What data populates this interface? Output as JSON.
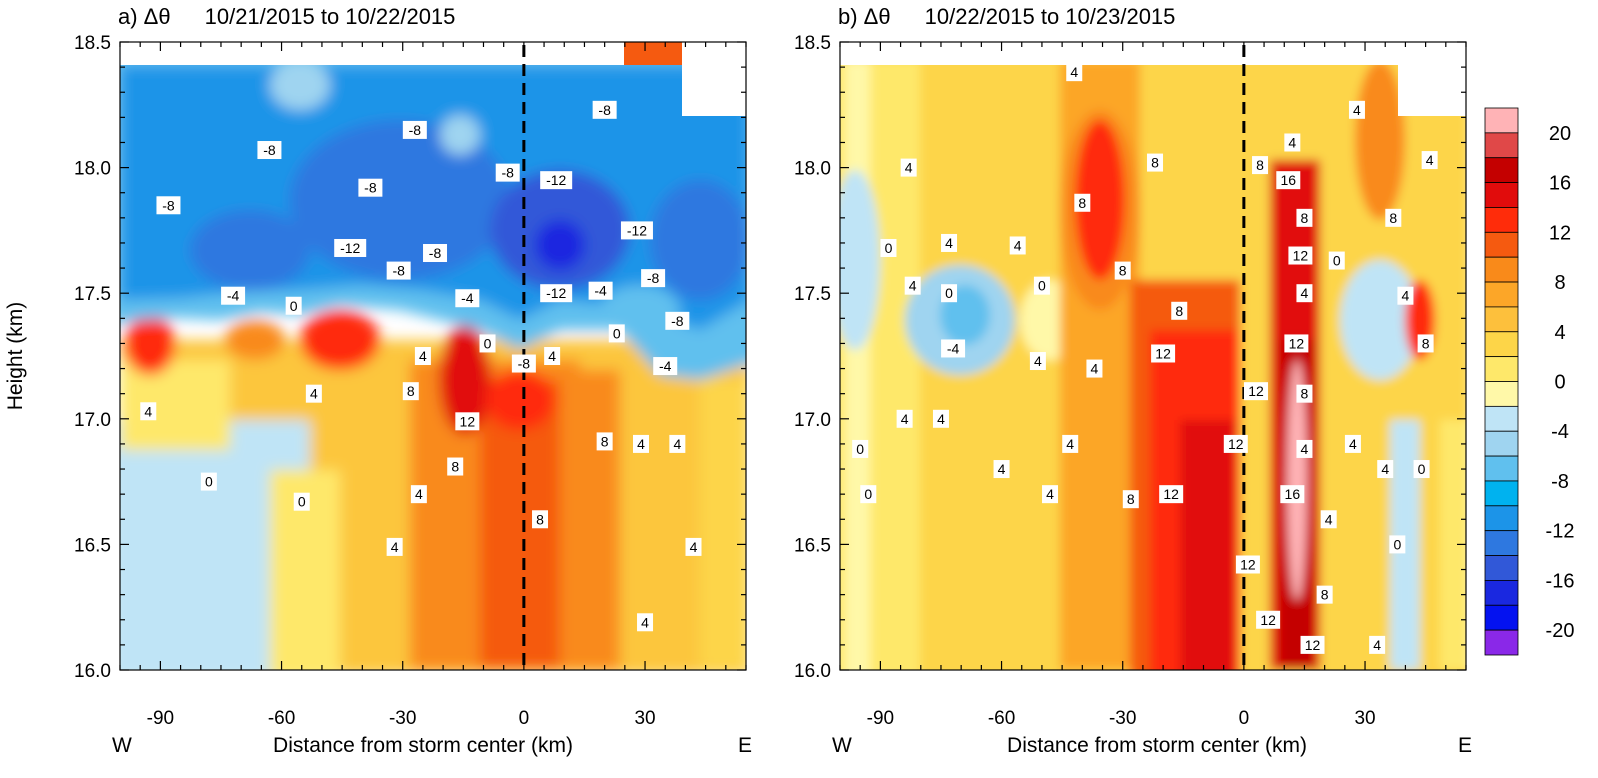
{
  "chart_data": [
    {
      "type": "heatmap",
      "title_panel": "a) Δθ",
      "title_dates": "10/21/2015 to 10/22/2015",
      "xlabel": "Distance from storm center (km)",
      "ylabel": "Height (km)",
      "xlim": [
        -100,
        55
      ],
      "ylim": [
        16.0,
        18.5
      ],
      "x_ticks": [
        "-90",
        "-60",
        "-30",
        "0",
        "30"
      ],
      "x_tick_values": [
        -90,
        -60,
        -30,
        0,
        30
      ],
      "y_ticks": [
        "16.0",
        "16.5",
        "17.0",
        "17.5",
        "18.0",
        "18.5"
      ],
      "y_tick_values": [
        16.0,
        16.5,
        17.0,
        17.5,
        18.0,
        18.5
      ],
      "left_label": "W",
      "right_label": "E",
      "storm_center_x": 0,
      "contour_labels": [
        {
          "x": -88,
          "y": 17.85,
          "text": "-8"
        },
        {
          "x": -63,
          "y": 18.07,
          "text": "-8"
        },
        {
          "x": -38,
          "y": 17.92,
          "text": "-8"
        },
        {
          "x": -27,
          "y": 18.15,
          "text": "-8"
        },
        {
          "x": -43,
          "y": 17.68,
          "text": "-12"
        },
        {
          "x": -31,
          "y": 17.59,
          "text": "-8"
        },
        {
          "x": -22,
          "y": 17.66,
          "text": "-8"
        },
        {
          "x": -4,
          "y": 17.98,
          "text": "-8"
        },
        {
          "x": 8,
          "y": 17.95,
          "text": "-12"
        },
        {
          "x": 20,
          "y": 18.23,
          "text": "-8"
        },
        {
          "x": 28,
          "y": 17.75,
          "text": "-12"
        },
        {
          "x": 8,
          "y": 17.5,
          "text": "-12"
        },
        {
          "x": 19,
          "y": 17.51,
          "text": "-4"
        },
        {
          "x": 32,
          "y": 17.56,
          "text": "-8"
        },
        {
          "x": 38,
          "y": 17.39,
          "text": "-8"
        },
        {
          "x": -72,
          "y": 17.49,
          "text": "-4"
        },
        {
          "x": -57,
          "y": 17.45,
          "text": "0"
        },
        {
          "x": -14,
          "y": 17.48,
          "text": "-4"
        },
        {
          "x": -9,
          "y": 17.3,
          "text": "0"
        },
        {
          "x": 23,
          "y": 17.34,
          "text": "0"
        },
        {
          "x": 0,
          "y": 17.22,
          "text": "-8"
        },
        {
          "x": 7,
          "y": 17.25,
          "text": "4"
        },
        {
          "x": 35,
          "y": 17.21,
          "text": "-4"
        },
        {
          "x": -25,
          "y": 17.25,
          "text": "4"
        },
        {
          "x": -93,
          "y": 17.03,
          "text": "4"
        },
        {
          "x": -52,
          "y": 17.1,
          "text": "4"
        },
        {
          "x": -28,
          "y": 17.11,
          "text": "8"
        },
        {
          "x": -14,
          "y": 16.99,
          "text": "12"
        },
        {
          "x": 20,
          "y": 16.91,
          "text": "8"
        },
        {
          "x": 29,
          "y": 16.9,
          "text": "4"
        },
        {
          "x": 38,
          "y": 16.9,
          "text": "4"
        },
        {
          "x": -78,
          "y": 16.75,
          "text": "0"
        },
        {
          "x": -17,
          "y": 16.81,
          "text": "8"
        },
        {
          "x": -26,
          "y": 16.7,
          "text": "4"
        },
        {
          "x": -55,
          "y": 16.67,
          "text": "0"
        },
        {
          "x": 4,
          "y": 16.6,
          "text": "8"
        },
        {
          "x": -32,
          "y": 16.49,
          "text": "4"
        },
        {
          "x": 42,
          "y": 16.49,
          "text": "4"
        },
        {
          "x": 30,
          "y": 16.19,
          "text": "4"
        }
      ]
    },
    {
      "type": "heatmap",
      "title_panel": "b) Δθ",
      "title_dates": "10/22/2015 to 10/23/2015",
      "xlabel": "Distance from storm center (km)",
      "ylabel": "",
      "xlim": [
        -100,
        55
      ],
      "ylim": [
        16.0,
        18.5
      ],
      "x_ticks": [
        "-90",
        "-60",
        "-30",
        "0",
        "30"
      ],
      "x_tick_values": [
        -90,
        -60,
        -30,
        0,
        30
      ],
      "y_ticks": [
        "16.0",
        "16.5",
        "17.0",
        "17.5",
        "18.0",
        "18.5"
      ],
      "y_tick_values": [
        16.0,
        16.5,
        17.0,
        17.5,
        18.0,
        18.5
      ],
      "left_label": "W",
      "right_label": "E",
      "storm_center_x": 0,
      "contour_labels": [
        {
          "x": -42,
          "y": 18.38,
          "text": "4"
        },
        {
          "x": -83,
          "y": 18.0,
          "text": "4"
        },
        {
          "x": -40,
          "y": 17.86,
          "text": "8"
        },
        {
          "x": -22,
          "y": 18.02,
          "text": "8"
        },
        {
          "x": 4,
          "y": 18.01,
          "text": "8"
        },
        {
          "x": 12,
          "y": 18.1,
          "text": "4"
        },
        {
          "x": 11,
          "y": 17.95,
          "text": "16"
        },
        {
          "x": 28,
          "y": 18.23,
          "text": "4"
        },
        {
          "x": 46,
          "y": 18.03,
          "text": "4"
        },
        {
          "x": 15,
          "y": 17.8,
          "text": "8"
        },
        {
          "x": 37,
          "y": 17.8,
          "text": "8"
        },
        {
          "x": -88,
          "y": 17.68,
          "text": "0"
        },
        {
          "x": -73,
          "y": 17.7,
          "text": "4"
        },
        {
          "x": -56,
          "y": 17.69,
          "text": "4"
        },
        {
          "x": 14,
          "y": 17.65,
          "text": "12"
        },
        {
          "x": 23,
          "y": 17.63,
          "text": "0"
        },
        {
          "x": -30,
          "y": 17.59,
          "text": "8"
        },
        {
          "x": -82,
          "y": 17.53,
          "text": "4"
        },
        {
          "x": -73,
          "y": 17.5,
          "text": "0"
        },
        {
          "x": -50,
          "y": 17.53,
          "text": "0"
        },
        {
          "x": 15,
          "y": 17.5,
          "text": "4"
        },
        {
          "x": 40,
          "y": 17.49,
          "text": "4"
        },
        {
          "x": -16,
          "y": 17.43,
          "text": "8"
        },
        {
          "x": 13,
          "y": 17.3,
          "text": "12"
        },
        {
          "x": -72,
          "y": 17.28,
          "text": "-4"
        },
        {
          "x": 45,
          "y": 17.3,
          "text": "8"
        },
        {
          "x": -20,
          "y": 17.26,
          "text": "12"
        },
        {
          "x": -51,
          "y": 17.23,
          "text": "4"
        },
        {
          "x": -37,
          "y": 17.2,
          "text": "4"
        },
        {
          "x": 3,
          "y": 17.11,
          "text": "12"
        },
        {
          "x": 15,
          "y": 17.1,
          "text": "8"
        },
        {
          "x": -84,
          "y": 17.0,
          "text": "4"
        },
        {
          "x": -75,
          "y": 17.0,
          "text": "4"
        },
        {
          "x": -43,
          "y": 16.9,
          "text": "4"
        },
        {
          "x": -2,
          "y": 16.9,
          "text": "12"
        },
        {
          "x": 15,
          "y": 16.88,
          "text": "4"
        },
        {
          "x": 27,
          "y": 16.9,
          "text": "4"
        },
        {
          "x": -95,
          "y": 16.88,
          "text": "0"
        },
        {
          "x": -60,
          "y": 16.8,
          "text": "4"
        },
        {
          "x": 35,
          "y": 16.8,
          "text": "4"
        },
        {
          "x": 44,
          "y": 16.8,
          "text": "0"
        },
        {
          "x": -93,
          "y": 16.7,
          "text": "0"
        },
        {
          "x": -48,
          "y": 16.7,
          "text": "4"
        },
        {
          "x": -28,
          "y": 16.68,
          "text": "8"
        },
        {
          "x": -18,
          "y": 16.7,
          "text": "12"
        },
        {
          "x": 12,
          "y": 16.7,
          "text": "16"
        },
        {
          "x": 21,
          "y": 16.6,
          "text": "4"
        },
        {
          "x": 38,
          "y": 16.5,
          "text": "0"
        },
        {
          "x": 1,
          "y": 16.42,
          "text": "12"
        },
        {
          "x": 20,
          "y": 16.3,
          "text": "8"
        },
        {
          "x": 6,
          "y": 16.2,
          "text": "12"
        },
        {
          "x": 17,
          "y": 16.1,
          "text": "12"
        },
        {
          "x": 33,
          "y": 16.1,
          "text": "4"
        }
      ]
    }
  ],
  "colorbar": {
    "tick_labels": [
      "20",
      "16",
      "12",
      "8",
      "4",
      "0",
      "-4",
      "-8",
      "-12",
      "-16",
      "-20"
    ],
    "colors": [
      "#ffb3b6",
      "#e04848",
      "#c40000",
      "#e10c0c",
      "#ff2c0a",
      "#f55a10",
      "#f98a1a",
      "#fca628",
      "#fdc03c",
      "#fdd548",
      "#fee86a",
      "#fff8a8",
      "#bfe4f6",
      "#9fd4f0",
      "#60c0ee",
      "#00b2ef",
      "#1c94e8",
      "#2e78e0",
      "#3158d8",
      "#1a28e0",
      "#0412f0",
      "#8a28e8"
    ]
  }
}
